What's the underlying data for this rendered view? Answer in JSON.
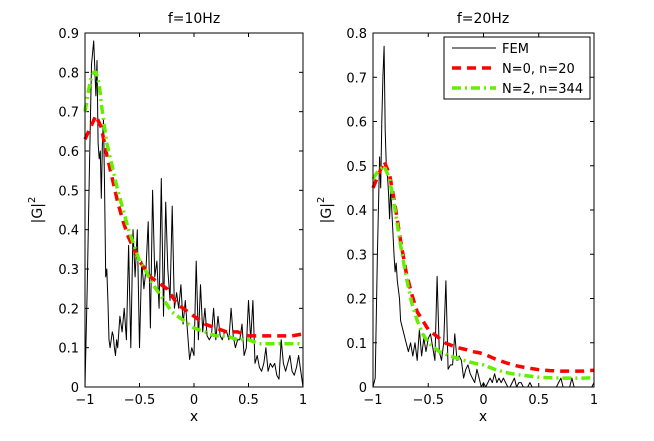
{
  "chart_data": [
    {
      "type": "line",
      "title": "f=10Hz",
      "xlabel": "x",
      "ylabel_base": "|G|",
      "ylabel_exp": "2",
      "xlim": [
        -1,
        1
      ],
      "ylim": [
        0,
        0.9
      ],
      "xticks": [
        -1,
        -0.5,
        0,
        0.5,
        1
      ],
      "xtick_labels": [
        "−1",
        "−0.5",
        "0",
        "0.5",
        "1"
      ],
      "yticks": [
        0,
        0.1,
        0.2,
        0.3,
        0.4,
        0.5,
        0.6,
        0.7,
        0.8,
        0.9
      ],
      "ytick_labels": [
        "0",
        "0.1",
        "0.2",
        "0.3",
        "0.4",
        "0.5",
        "0.6",
        "0.7",
        "0.8",
        "0.9"
      ],
      "series": [
        {
          "name": "FEM",
          "color": "#000000",
          "style": "solid",
          "x": [
            -1,
            -0.98,
            -0.96,
            -0.94,
            -0.92,
            -0.9,
            -0.89,
            -0.88,
            -0.87,
            -0.86,
            -0.85,
            -0.84,
            -0.83,
            -0.82,
            -0.81,
            -0.8,
            -0.79,
            -0.78,
            -0.77,
            -0.76,
            -0.75,
            -0.74,
            -0.73,
            -0.72,
            -0.71,
            -0.7,
            -0.68,
            -0.66,
            -0.64,
            -0.62,
            -0.6,
            -0.58,
            -0.56,
            -0.54,
            -0.52,
            -0.5,
            -0.48,
            -0.46,
            -0.44,
            -0.42,
            -0.4,
            -0.38,
            -0.36,
            -0.34,
            -0.32,
            -0.3,
            -0.28,
            -0.26,
            -0.24,
            -0.22,
            -0.2,
            -0.18,
            -0.16,
            -0.14,
            -0.12,
            -0.1,
            -0.08,
            -0.06,
            -0.04,
            -0.02,
            0,
            0.02,
            0.04,
            0.06,
            0.08,
            0.1,
            0.12,
            0.14,
            0.16,
            0.18,
            0.2,
            0.22,
            0.24,
            0.26,
            0.28,
            0.3,
            0.32,
            0.34,
            0.36,
            0.38,
            0.4,
            0.42,
            0.44,
            0.46,
            0.48,
            0.5,
            0.52,
            0.54,
            0.56,
            0.58,
            0.6,
            0.62,
            0.64,
            0.66,
            0.68,
            0.7,
            0.72,
            0.74,
            0.76,
            0.78,
            0.8,
            0.82,
            0.84,
            0.86,
            0.88,
            0.9,
            0.92,
            0.94,
            0.96,
            0.98,
            1
          ],
          "y": [
            0,
            0.25,
            0.55,
            0.82,
            0.88,
            0.74,
            0.83,
            0.62,
            0.58,
            0.6,
            0.48,
            0.62,
            0.68,
            0.5,
            0.28,
            0.3,
            0.22,
            0.12,
            0.1,
            0.12,
            0.14,
            0.13,
            0.1,
            0.08,
            0.12,
            0.1,
            0.18,
            0.14,
            0.2,
            0.12,
            0.36,
            0.1,
            0.4,
            0.28,
            0.4,
            0.1,
            0.32,
            0.25,
            0.3,
            0.42,
            0.15,
            0.5,
            0.28,
            0.32,
            0.2,
            0.53,
            0.18,
            0.47,
            0.3,
            0.22,
            0.46,
            0.2,
            0.24,
            0.2,
            0.26,
            0.16,
            0.22,
            0.14,
            0.07,
            0.1,
            0.08,
            0.32,
            0.12,
            0.26,
            0.14,
            0.2,
            0.13,
            0.12,
            0.13,
            0.2,
            0.12,
            0.18,
            0.13,
            0.12,
            0.14,
            0.14,
            0.12,
            0.2,
            0.13,
            0.1,
            0.12,
            0.12,
            0.16,
            0.08,
            0.1,
            0.22,
            0.12,
            0.22,
            0.06,
            0.08,
            0.05,
            0.04,
            0.06,
            0.1,
            0.04,
            0.06,
            0.05,
            0.06,
            0.03,
            0.02,
            0.12,
            0.06,
            0.04,
            0.06,
            0.08,
            0.04,
            0.03,
            0.05,
            0.08,
            0.04,
            0
          ]
        },
        {
          "name": "N=0, n=20",
          "color": "#ff0000",
          "style": "dashed",
          "x": [
            -1,
            -0.95,
            -0.9,
            -0.85,
            -0.8,
            -0.75,
            -0.7,
            -0.65,
            -0.6,
            -0.55,
            -0.5,
            -0.45,
            -0.4,
            -0.35,
            -0.3,
            -0.25,
            -0.2,
            -0.15,
            -0.1,
            -0.05,
            0,
            0.1,
            0.2,
            0.3,
            0.4,
            0.5,
            0.6,
            0.7,
            0.8,
            0.9,
            1
          ],
          "y": [
            0.63,
            0.66,
            0.69,
            0.66,
            0.59,
            0.53,
            0.47,
            0.42,
            0.38,
            0.35,
            0.32,
            0.3,
            0.28,
            0.27,
            0.26,
            0.25,
            0.23,
            0.21,
            0.2,
            0.19,
            0.18,
            0.16,
            0.15,
            0.14,
            0.14,
            0.13,
            0.13,
            0.13,
            0.13,
            0.13,
            0.135
          ]
        },
        {
          "name": "N=2, n=344",
          "color": "#66ee00",
          "style": "dashdot",
          "x": [
            -1,
            -0.97,
            -0.95,
            -0.92,
            -0.9,
            -0.87,
            -0.85,
            -0.82,
            -0.8,
            -0.75,
            -0.7,
            -0.65,
            -0.6,
            -0.55,
            -0.5,
            -0.45,
            -0.4,
            -0.35,
            -0.3,
            -0.25,
            -0.2,
            -0.15,
            -0.1,
            -0.05,
            0,
            0.1,
            0.2,
            0.3,
            0.4,
            0.5,
            0.6,
            0.7,
            0.8,
            0.9,
            1
          ],
          "y": [
            0.7,
            0.75,
            0.78,
            0.8,
            0.8,
            0.77,
            0.72,
            0.66,
            0.62,
            0.56,
            0.5,
            0.45,
            0.4,
            0.36,
            0.32,
            0.3,
            0.27,
            0.25,
            0.23,
            0.21,
            0.19,
            0.18,
            0.17,
            0.16,
            0.15,
            0.14,
            0.13,
            0.13,
            0.12,
            0.12,
            0.11,
            0.11,
            0.11,
            0.11,
            0.11
          ]
        }
      ]
    },
    {
      "type": "line",
      "title": "f=20Hz",
      "xlabel": "x",
      "ylabel_base": "|G|",
      "ylabel_exp": "2",
      "xlim": [
        -1,
        1
      ],
      "ylim": [
        0,
        0.8
      ],
      "xticks": [
        -1,
        -0.5,
        0,
        0.5,
        1
      ],
      "xtick_labels": [
        "−1",
        "−0.5",
        "0",
        "0.5",
        "1"
      ],
      "yticks": [
        0,
        0.1,
        0.2,
        0.3,
        0.4,
        0.5,
        0.6,
        0.7,
        0.8
      ],
      "ytick_labels": [
        "0",
        "0.1",
        "0.2",
        "0.3",
        "0.4",
        "0.5",
        "0.6",
        "0.7",
        "0.8"
      ],
      "legend": {
        "position": "top-right",
        "entries": [
          "FEM",
          "N=0, n=20",
          "N=2, n=344"
        ]
      },
      "series": [
        {
          "name": "FEM",
          "color": "#000000",
          "style": "solid",
          "x": [
            -1,
            -0.98,
            -0.96,
            -0.94,
            -0.93,
            -0.92,
            -0.91,
            -0.9,
            -0.89,
            -0.88,
            -0.87,
            -0.86,
            -0.85,
            -0.84,
            -0.83,
            -0.82,
            -0.81,
            -0.8,
            -0.79,
            -0.78,
            -0.77,
            -0.76,
            -0.75,
            -0.74,
            -0.72,
            -0.7,
            -0.68,
            -0.66,
            -0.64,
            -0.62,
            -0.6,
            -0.58,
            -0.56,
            -0.54,
            -0.52,
            -0.5,
            -0.48,
            -0.46,
            -0.44,
            -0.42,
            -0.4,
            -0.38,
            -0.36,
            -0.34,
            -0.32,
            -0.3,
            -0.28,
            -0.26,
            -0.24,
            -0.22,
            -0.2,
            -0.18,
            -0.16,
            -0.14,
            -0.12,
            -0.1,
            -0.08,
            -0.06,
            -0.04,
            -0.02,
            0,
            0.02,
            0.04,
            0.06,
            0.08,
            0.1,
            0.12,
            0.14,
            0.16,
            0.18,
            0.2,
            0.22,
            0.24,
            0.26,
            0.28,
            0.3,
            0.32,
            0.34,
            0.36,
            0.38,
            0.4,
            0.42,
            0.44,
            0.46,
            0.48,
            0.5,
            0.52,
            0.54,
            0.56,
            0.58,
            0.6,
            0.62,
            0.64,
            0.66,
            0.68,
            0.7,
            0.72,
            0.74,
            0.76,
            0.78,
            0.8,
            0.82,
            0.84,
            0.86,
            0.88,
            0.9,
            0.92,
            0.94,
            0.96,
            0.98,
            1
          ],
          "y": [
            0,
            0.02,
            0.3,
            0.52,
            0.45,
            0.6,
            0.7,
            0.77,
            0.58,
            0.5,
            0.48,
            0.44,
            0.38,
            0.45,
            0.4,
            0.35,
            0.3,
            0.26,
            0.28,
            0.24,
            0.22,
            0.2,
            0.15,
            0.14,
            0.12,
            0.1,
            0.08,
            0.1,
            0.07,
            0.1,
            0.06,
            0.13,
            0.07,
            0.11,
            0.08,
            0.11,
            0.12,
            0.09,
            0.06,
            0.25,
            0.08,
            0.06,
            0.1,
            0.24,
            0.04,
            0.05,
            0.05,
            0.12,
            0.06,
            0.07,
            0.06,
            0.02,
            0.04,
            0.05,
            0.03,
            0.02,
            0.01,
            0.04,
            0.02,
            0.0,
            0.01,
            0.0,
            0.01,
            0.02,
            0.01,
            0.03,
            0.01,
            0.02,
            0.01,
            0.02,
            0.01,
            0.0,
            0.0,
            0.01,
            0.02,
            0.0,
            0.01,
            0.01,
            0.0,
            0.0,
            0.0,
            0.01,
            0.0,
            0.0,
            0.0,
            0.0,
            0.0,
            0.0,
            0.0,
            0.0,
            0.0,
            0.0,
            0.0,
            0.0,
            0.01,
            0.02,
            0.0,
            0.0,
            0.0,
            0.0,
            0.02,
            0.0,
            0.0,
            0.0,
            0.0,
            0.0,
            0.0,
            0.0,
            0.0,
            0.0,
            0.01
          ]
        },
        {
          "name": "N=0, n=20",
          "color": "#ff0000",
          "style": "dashed",
          "x": [
            -1,
            -0.95,
            -0.9,
            -0.85,
            -0.8,
            -0.75,
            -0.7,
            -0.65,
            -0.6,
            -0.55,
            -0.5,
            -0.45,
            -0.4,
            -0.35,
            -0.3,
            -0.25,
            -0.2,
            -0.15,
            -0.1,
            -0.05,
            0,
            0.1,
            0.2,
            0.3,
            0.4,
            0.5,
            0.6,
            0.7,
            0.8,
            0.9,
            1
          ],
          "y": [
            0.45,
            0.48,
            0.51,
            0.48,
            0.41,
            0.33,
            0.26,
            0.21,
            0.17,
            0.15,
            0.13,
            0.12,
            0.11,
            0.1,
            0.095,
            0.09,
            0.087,
            0.084,
            0.08,
            0.078,
            0.075,
            0.064,
            0.055,
            0.048,
            0.043,
            0.039,
            0.037,
            0.036,
            0.036,
            0.036,
            0.038
          ]
        },
        {
          "name": "N=2, n=344",
          "color": "#66ee00",
          "style": "dashdot",
          "x": [
            -1,
            -0.95,
            -0.9,
            -0.85,
            -0.8,
            -0.75,
            -0.7,
            -0.65,
            -0.6,
            -0.55,
            -0.5,
            -0.45,
            -0.4,
            -0.35,
            -0.3,
            -0.25,
            -0.2,
            -0.15,
            -0.1,
            -0.05,
            0,
            0.1,
            0.2,
            0.3,
            0.4,
            0.5,
            0.6,
            0.7,
            0.8,
            0.9,
            1
          ],
          "y": [
            0.47,
            0.49,
            0.5,
            0.47,
            0.4,
            0.32,
            0.25,
            0.19,
            0.15,
            0.12,
            0.1,
            0.09,
            0.08,
            0.075,
            0.07,
            0.066,
            0.062,
            0.058,
            0.055,
            0.052,
            0.05,
            0.04,
            0.033,
            0.028,
            0.025,
            0.022,
            0.021,
            0.02,
            0.02,
            0.02,
            0.021
          ]
        }
      ]
    }
  ]
}
